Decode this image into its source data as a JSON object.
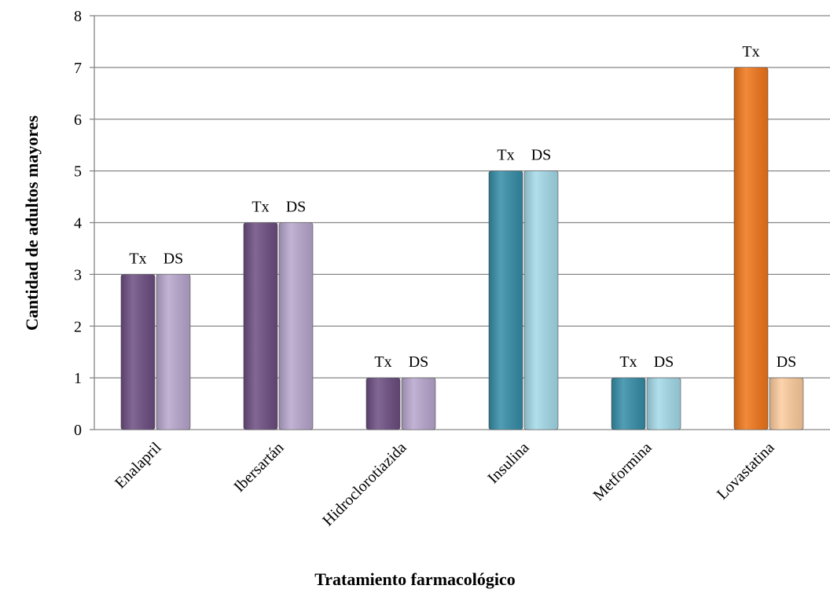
{
  "chart_data": {
    "type": "bar",
    "xlabel": "Tratamiento farmacológico",
    "ylabel": "Cantidad de adultos mayores",
    "categories": [
      "Enalapril",
      "Ibersartán",
      "Hidroclorotiazida",
      "Insulina",
      "Metformina",
      "Lovastatina"
    ],
    "series": [
      {
        "name": "Tx",
        "colors": [
          "#6b4c80",
          "#6b4c80",
          "#6b4c80",
          "#338ca6",
          "#338ca6",
          "#f07518"
        ],
        "values": [
          3,
          4,
          1,
          5,
          1,
          7
        ]
      },
      {
        "name": "DS",
        "colors": [
          "#b7a5cd",
          "#b7a5cd",
          "#b7a5cd",
          "#a3d9e8",
          "#a3d9e8",
          "#fccb9c"
        ],
        "values": [
          3,
          4,
          1,
          5,
          1,
          1
        ]
      }
    ],
    "ylim": [
      0,
      8
    ],
    "yticks": [
      0,
      1,
      2,
      3,
      4,
      5,
      6,
      7,
      8
    ],
    "grid": true
  }
}
